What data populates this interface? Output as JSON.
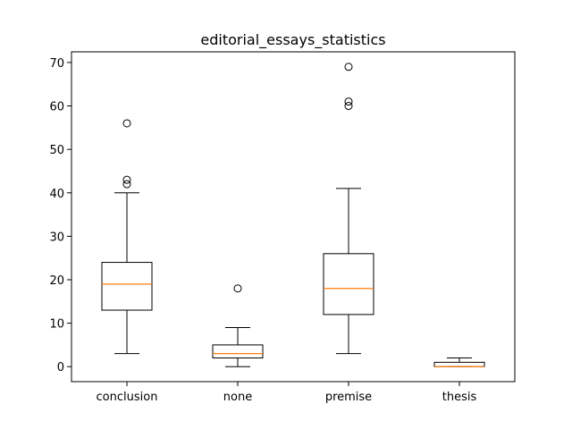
{
  "chart_data": {
    "type": "box",
    "title": "editorial_essays_statistics",
    "xlabel": "",
    "ylabel": "",
    "categories": [
      "conclusion",
      "none",
      "premise",
      "thesis"
    ],
    "ylim": [
      -3.45,
      72.45
    ],
    "yticks": [
      0,
      10,
      20,
      30,
      40,
      50,
      60,
      70
    ],
    "grid": false,
    "boxes": [
      {
        "category": "conclusion",
        "whislo": 3,
        "q1": 13,
        "median": 19,
        "q3": 24,
        "whishi": 40,
        "fliers": [
          42,
          43,
          56
        ]
      },
      {
        "category": "none",
        "whislo": 0,
        "q1": 2,
        "median": 3,
        "q3": 5,
        "whishi": 9,
        "fliers": [
          18
        ]
      },
      {
        "category": "premise",
        "whislo": 3,
        "q1": 12,
        "median": 18,
        "q3": 26,
        "whishi": 41,
        "fliers": [
          60,
          61,
          69
        ]
      },
      {
        "category": "thesis",
        "whislo": 0,
        "q1": 0,
        "median": 0,
        "q3": 1,
        "whishi": 2,
        "fliers": []
      }
    ],
    "colors": {
      "box": "#000000",
      "median": "#ff7f0e",
      "flier": "#000000"
    }
  }
}
